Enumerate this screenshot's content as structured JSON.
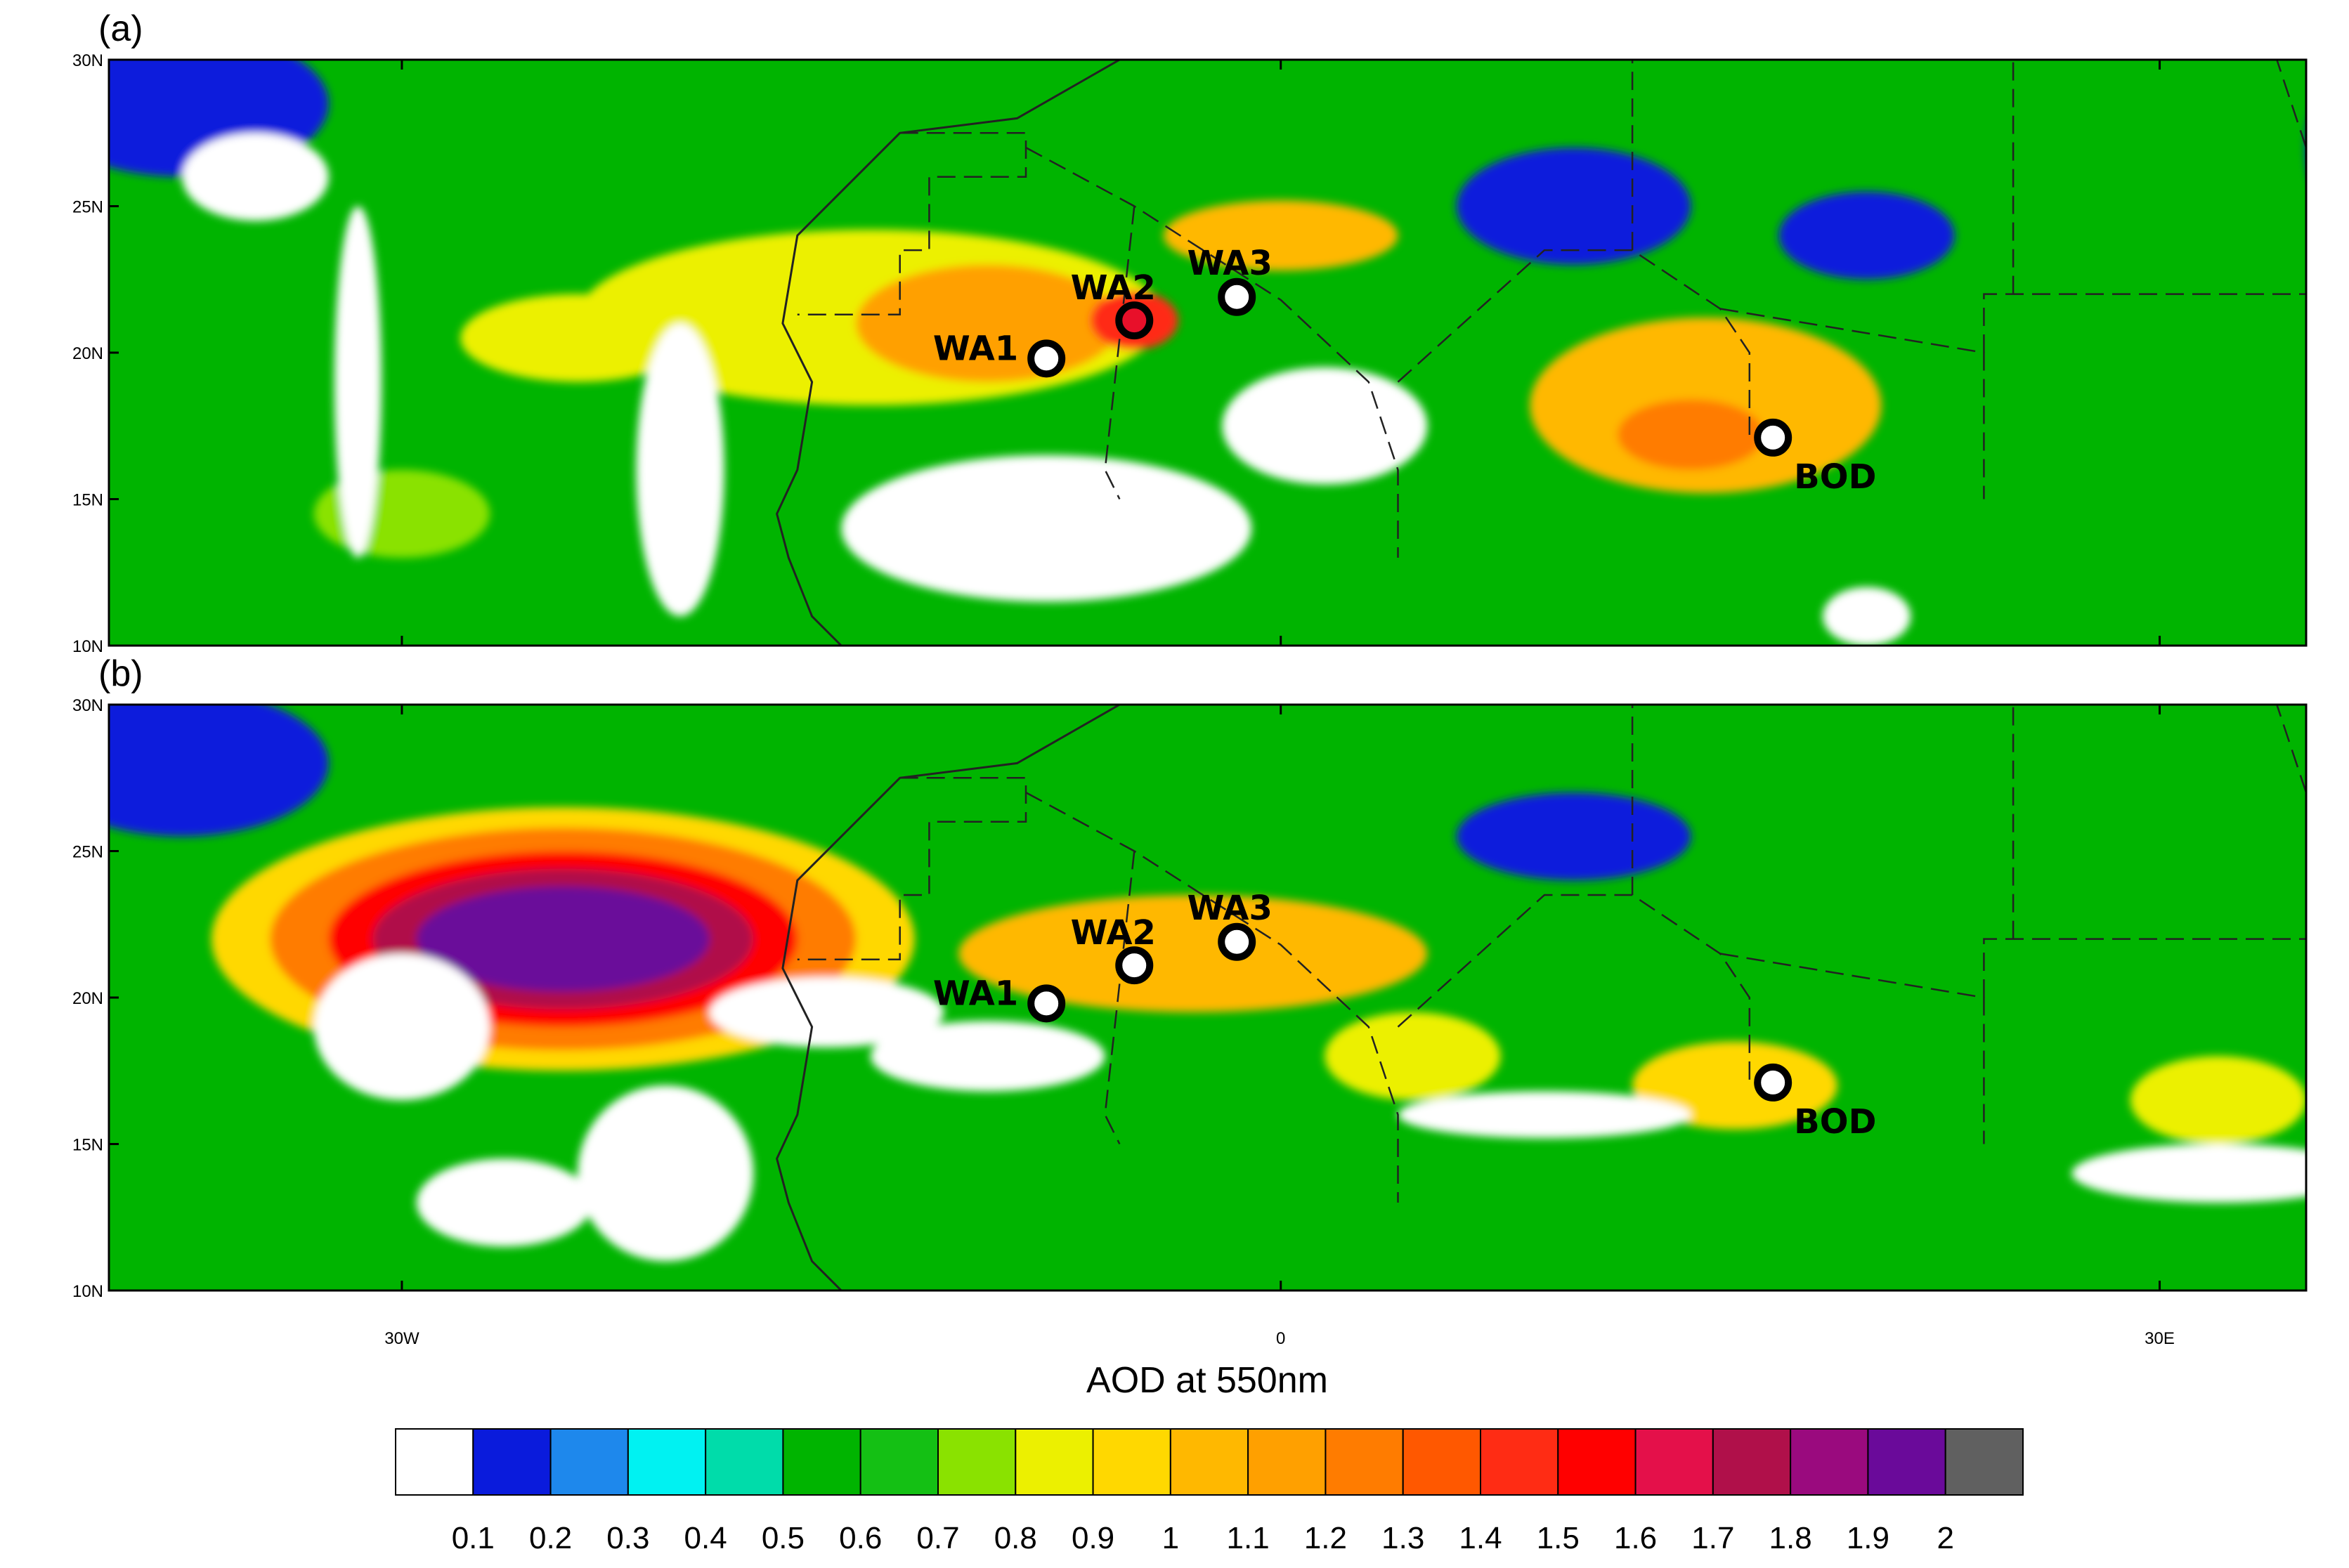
{
  "figure": {
    "panels": [
      {
        "id": "a",
        "label": "(a)",
        "sites": [
          {
            "name": "WA1",
            "lon": -8.0,
            "lat": 19.8,
            "fill": "#ffffff"
          },
          {
            "name": "WA2",
            "lon": -5.0,
            "lat": 21.1,
            "fill": "#e8102a"
          },
          {
            "name": "WA3",
            "lon": -1.5,
            "lat": 21.9,
            "fill": "#ffffff"
          },
          {
            "name": "BOD",
            "lon": 16.8,
            "lat": 17.1,
            "fill": "#ffffff"
          }
        ],
        "blobs": [
          {
            "lon": -14.0,
            "lat": 21.2,
            "rx": 10,
            "ry": 3.0,
            "level": 8
          },
          {
            "lon": -10.0,
            "lat": 21.0,
            "rx": 4.5,
            "ry": 2.0,
            "level": 11
          },
          {
            "lon": -5.0,
            "lat": 21.1,
            "rx": 1.5,
            "ry": 1.0,
            "level": 14
          },
          {
            "lon": 0.0,
            "lat": 24.0,
            "rx": 4,
            "ry": 1.2,
            "level": 10
          },
          {
            "lon": 14.5,
            "lat": 18.2,
            "rx": 6,
            "ry": 3.0,
            "level": 10
          },
          {
            "lon": 14.0,
            "lat": 17.2,
            "rx": 2.5,
            "ry": 1.2,
            "level": 12
          },
          {
            "lon": -24.0,
            "lat": 20.5,
            "rx": 4,
            "ry": 1.5,
            "level": 8
          },
          {
            "lon": -30.0,
            "lat": 14.5,
            "rx": 3,
            "ry": 1.5,
            "level": 7
          },
          {
            "lon": 10.0,
            "lat": 25.0,
            "rx": 4,
            "ry": 2,
            "level": 1
          },
          {
            "lon": 20.0,
            "lat": 24.0,
            "rx": 3,
            "ry": 1.5,
            "level": 1
          },
          {
            "lon": -37.5,
            "lat": 28.5,
            "rx": 5,
            "ry": 2.5,
            "level": 1
          },
          {
            "lon": 36.5,
            "lat": 27.0,
            "rx": 1.5,
            "ry": 2.5,
            "level": 1
          },
          {
            "lon": -8.0,
            "lat": 14.0,
            "rx": 7,
            "ry": 2.5,
            "level": 0
          },
          {
            "lon": 1.5,
            "lat": 17.5,
            "rx": 3.5,
            "ry": 2.0,
            "level": 0
          },
          {
            "lon": -20.5,
            "lat": 16.0,
            "rx": 1.5,
            "ry": 5.0,
            "level": 0
          },
          {
            "lon": -31.5,
            "lat": 19.0,
            "rx": 0.8,
            "ry": 6.0,
            "level": 0
          },
          {
            "lon": -35.0,
            "lat": 26.0,
            "rx": 2.5,
            "ry": 1.5,
            "level": 0
          },
          {
            "lon": 20.0,
            "lat": 11.0,
            "rx": 1.5,
            "ry": 1.0,
            "level": 0
          }
        ]
      },
      {
        "id": "b",
        "label": "(b)",
        "sites": [
          {
            "name": "WA1",
            "lon": -8.0,
            "lat": 19.8,
            "fill": "#ffffff"
          },
          {
            "name": "WA2",
            "lon": -5.0,
            "lat": 21.1,
            "fill": "#ffffff"
          },
          {
            "name": "WA3",
            "lon": -1.5,
            "lat": 21.9,
            "fill": "#ffffff"
          },
          {
            "name": "BOD",
            "lon": 16.8,
            "lat": 17.1,
            "fill": "#ffffff"
          }
        ],
        "blobs": [
          {
            "lon": -3.0,
            "lat": 21.5,
            "rx": 8,
            "ry": 2.0,
            "level": 10
          },
          {
            "lon": 15.5,
            "lat": 17.0,
            "rx": 3.5,
            "ry": 1.5,
            "level": 9
          },
          {
            "lon": 4.5,
            "lat": 18.0,
            "rx": 3,
            "ry": 1.5,
            "level": 8
          },
          {
            "lon": 32.0,
            "lat": 16.5,
            "rx": 3,
            "ry": 1.5,
            "level": 8
          },
          {
            "lon": 10.0,
            "lat": 25.5,
            "rx": 4,
            "ry": 1.5,
            "level": 1
          },
          {
            "lon": -37.5,
            "lat": 28.0,
            "rx": 5,
            "ry": 2.5,
            "level": 1
          },
          {
            "lon": -10.0,
            "lat": 18.0,
            "rx": 4,
            "ry": 1.2,
            "level": 0
          },
          {
            "lon": -15.5,
            "lat": 19.5,
            "rx": 4,
            "ry": 1.2,
            "level": 0
          },
          {
            "lon": -30.0,
            "lat": 19.0,
            "rx": 3,
            "ry": 2.5,
            "level": 0
          },
          {
            "lon": -21.0,
            "lat": 14.0,
            "rx": 3,
            "ry": 3.0,
            "level": 0
          },
          {
            "lon": -26.5,
            "lat": 13.0,
            "rx": 3,
            "ry": 1.5,
            "level": 0
          },
          {
            "lon": 9.0,
            "lat": 16.0,
            "rx": 5,
            "ry": 0.8,
            "level": 0
          },
          {
            "lon": 32.0,
            "lat": 14.0,
            "rx": 5,
            "ry": 1.0,
            "level": 0
          }
        ],
        "plume": {
          "lon": -24.5,
          "lat": 22.0,
          "levels": [
            {
              "rx": 12,
              "ry": 4.5,
              "level": 9
            },
            {
              "rx": 10,
              "ry": 3.8,
              "level": 12
            },
            {
              "rx": 8,
              "ry": 3.0,
              "level": 15
            },
            {
              "rx": 6.5,
              "ry": 2.4,
              "level": 17
            },
            {
              "rx": 5,
              "ry": 1.8,
              "level": 19
            }
          ]
        }
      }
    ],
    "lat_ticks": [
      "10N",
      "15N",
      "20N",
      "25N",
      "30N"
    ],
    "lat_values": [
      10,
      15,
      20,
      25,
      30
    ],
    "lon_ticks": [
      "30W",
      "0",
      "30E"
    ],
    "lon_values": [
      -30,
      0,
      30
    ],
    "lon_range": [
      -40,
      35
    ],
    "lat_range": [
      10,
      30
    ],
    "axis_title": "AOD at 550nm"
  },
  "colorbar": {
    "colors": [
      "#ffffff",
      "#0a1bdc",
      "#1e88ec",
      "#00f2f2",
      "#00dcaa",
      "#00b400",
      "#14c014",
      "#8ae200",
      "#ecf000",
      "#ffd800",
      "#ffb800",
      "#ffa000",
      "#ff7c00",
      "#ff5800",
      "#ff2c14",
      "#ff0000",
      "#e4104a",
      "#b0104a",
      "#9a0a7e",
      "#6a0a9a",
      "#606060"
    ],
    "labels": [
      "0.1",
      "0.2",
      "0.3",
      "0.4",
      "0.5",
      "0.6",
      "0.7",
      "0.8",
      "0.9",
      "1",
      "1.1",
      "1.2",
      "1.3",
      "1.4",
      "1.5",
      "1.6",
      "1.7",
      "1.8",
      "1.9",
      "2"
    ]
  }
}
